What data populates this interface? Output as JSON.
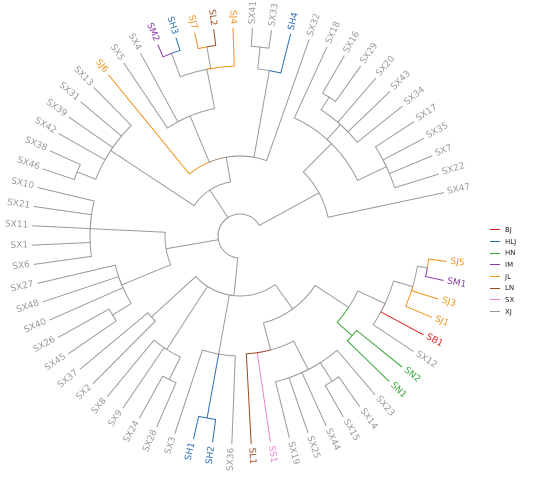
{
  "colors": {
    "BJ": "#dd2222",
    "HLJ": "#2a6fb3",
    "HN": "#3aa63a",
    "IM": "#8a3aa6",
    "JL": "#f0921e",
    "LN": "#9a4a1c",
    "SX": "#ec82cf",
    "XJ": "#9a9a9a"
  },
  "legend": [
    {
      "code": "BJ",
      "label": "BJ"
    },
    {
      "code": "HLJ",
      "label": "HLJ"
    },
    {
      "code": "HN",
      "label": "HN"
    },
    {
      "code": "IM",
      "label": "IM"
    },
    {
      "code": "JL",
      "label": "JL"
    },
    {
      "code": "LN",
      "label": "LN"
    },
    {
      "code": "SX",
      "label": "SX"
    },
    {
      "code": "XJ",
      "label": "XJ"
    }
  ],
  "tips": [
    {
      "label": "SJ5",
      "group": "JL"
    },
    {
      "label": "SM1",
      "group": "IM"
    },
    {
      "label": "SJ3",
      "group": "JL"
    },
    {
      "label": "SJ1",
      "group": "JL"
    },
    {
      "label": "SB1",
      "group": "BJ"
    },
    {
      "label": "SX12",
      "group": "XJ"
    },
    {
      "label": "SN2",
      "group": "HN"
    },
    {
      "label": "SN1",
      "group": "HN"
    },
    {
      "label": "SX23",
      "group": "XJ"
    },
    {
      "label": "SX14",
      "group": "XJ"
    },
    {
      "label": "SX15",
      "group": "XJ"
    },
    {
      "label": "SX44",
      "group": "XJ"
    },
    {
      "label": "SX25",
      "group": "XJ"
    },
    {
      "label": "SX19",
      "group": "XJ"
    },
    {
      "label": "SS1",
      "group": "SX"
    },
    {
      "label": "SL1",
      "group": "LN"
    },
    {
      "label": "SX36",
      "group": "XJ"
    },
    {
      "label": "SH2",
      "group": "HLJ"
    },
    {
      "label": "SH1",
      "group": "HLJ"
    },
    {
      "label": "SX3",
      "group": "XJ"
    },
    {
      "label": "SX28",
      "group": "XJ"
    },
    {
      "label": "SX24",
      "group": "XJ"
    },
    {
      "label": "SX9",
      "group": "XJ"
    },
    {
      "label": "SX8",
      "group": "XJ"
    },
    {
      "label": "SX2",
      "group": "XJ"
    },
    {
      "label": "SX37",
      "group": "XJ"
    },
    {
      "label": "SX45",
      "group": "XJ"
    },
    {
      "label": "SX26",
      "group": "XJ"
    },
    {
      "label": "SX40",
      "group": "XJ"
    },
    {
      "label": "SX48",
      "group": "XJ"
    },
    {
      "label": "SX27",
      "group": "XJ"
    },
    {
      "label": "SX6",
      "group": "XJ"
    },
    {
      "label": "SX1",
      "group": "XJ"
    },
    {
      "label": "SX11",
      "group": "XJ"
    },
    {
      "label": "SX21",
      "group": "XJ"
    },
    {
      "label": "SX10",
      "group": "XJ"
    },
    {
      "label": "SX46",
      "group": "XJ"
    },
    {
      "label": "SX38",
      "group": "XJ"
    },
    {
      "label": "SX42",
      "group": "XJ"
    },
    {
      "label": "SX39",
      "group": "XJ"
    },
    {
      "label": "SX31",
      "group": "XJ"
    },
    {
      "label": "SX13",
      "group": "XJ"
    },
    {
      "label": "SJ6",
      "group": "JL"
    },
    {
      "label": "SX5",
      "group": "XJ"
    },
    {
      "label": "SX4",
      "group": "XJ"
    },
    {
      "label": "SM2",
      "group": "IM"
    },
    {
      "label": "SH3",
      "group": "HLJ"
    },
    {
      "label": "SJ7",
      "group": "JL"
    },
    {
      "label": "SL2",
      "group": "LN"
    },
    {
      "label": "SJ4",
      "group": "JL"
    },
    {
      "label": "SX41",
      "group": "XJ"
    },
    {
      "label": "SX33",
      "group": "XJ"
    },
    {
      "label": "SH4",
      "group": "HLJ"
    },
    {
      "label": "SX32",
      "group": "XJ"
    },
    {
      "label": "SX18",
      "group": "XJ"
    },
    {
      "label": "SX16",
      "group": "XJ"
    },
    {
      "label": "SX29",
      "group": "XJ"
    },
    {
      "label": "SX20",
      "group": "XJ"
    },
    {
      "label": "SX43",
      "group": "XJ"
    },
    {
      "label": "SX34",
      "group": "XJ"
    },
    {
      "label": "SX17",
      "group": "XJ"
    },
    {
      "label": "SX35",
      "group": "XJ"
    },
    {
      "label": "SX7",
      "group": "XJ"
    },
    {
      "label": "SX22",
      "group": "XJ"
    },
    {
      "label": "SX47",
      "group": "XJ"
    }
  ]
}
